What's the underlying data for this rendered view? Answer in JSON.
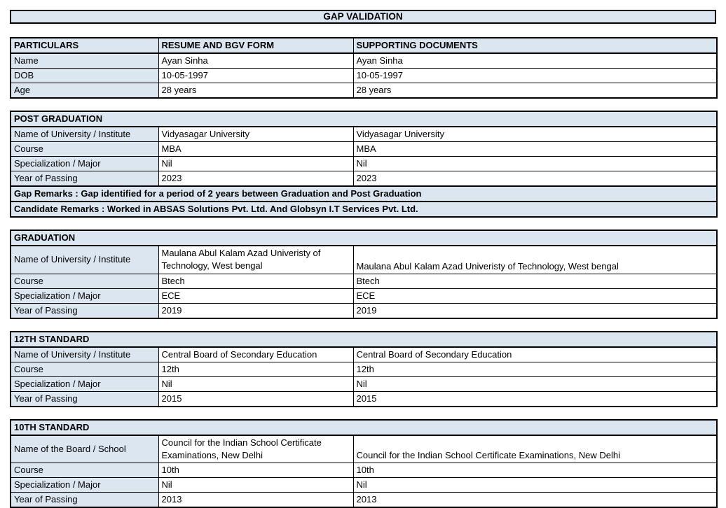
{
  "title": "GAP VALIDATION",
  "colors": {
    "accent_fill": "#DCE6F1",
    "border": "#000000",
    "text": "#000000",
    "background": "#FFFFFF"
  },
  "particulars_table": {
    "headers": [
      "PARTICULARS",
      "RESUME AND BGV FORM",
      "SUPPORTING DOCUMENTS"
    ],
    "rows": [
      {
        "label": "Name",
        "resume": "Ayan Sinha",
        "supporting": "Ayan Sinha"
      },
      {
        "label": "DOB",
        "resume": "10-05-1997",
        "supporting": "10-05-1997"
      },
      {
        "label": "Age",
        "resume": "28 years",
        "supporting": "28 years"
      }
    ]
  },
  "post_graduation": {
    "title": "POST GRADUATION",
    "rows": [
      {
        "label": "Name of University / Institute",
        "resume": "Vidyasagar University",
        "supporting": "Vidyasagar University"
      },
      {
        "label": "Course",
        "resume": "MBA",
        "supporting": "MBA"
      },
      {
        "label": "Specialization / Major",
        "resume": "Nil",
        "supporting": "Nil"
      },
      {
        "label": "Year of Passing",
        "resume": "2023",
        "supporting": "2023"
      }
    ],
    "gap_remarks": "Gap Remarks : Gap identified for a period of 2 years between Graduation and Post Graduation",
    "candidate_remarks": "Candidate Remarks : Worked in ABSAS Solutions Pvt. Ltd.  And Globsyn I.T Services Pvt. Ltd."
  },
  "graduation": {
    "title": "GRADUATION",
    "rows": [
      {
        "label": "Name of University / Institute",
        "resume": "Maulana Abul Kalam Azad Univeristy of Technology, West bengal",
        "supporting": "Maulana Abul Kalam Azad Univeristy of Technology, West bengal"
      },
      {
        "label": "Course",
        "resume": "Btech",
        "supporting": "Btech"
      },
      {
        "label": "Specialization / Major",
        "resume": "ECE",
        "supporting": "ECE"
      },
      {
        "label": "Year of Passing",
        "resume": "2019",
        "supporting": "2019"
      }
    ]
  },
  "twelfth_standard": {
    "title": "12TH STANDARD",
    "rows": [
      {
        "label": "Name of University / Institute",
        "resume": "Central Board of Secondary Education",
        "supporting": "Central Board of Secondary Education"
      },
      {
        "label": "Course",
        "resume": "12th",
        "supporting": "12th"
      },
      {
        "label": "Specialization / Major",
        "resume": "Nil",
        "supporting": "Nil"
      },
      {
        "label": "Year of Passing",
        "resume": "2015",
        "supporting": "2015"
      }
    ]
  },
  "tenth_standard": {
    "title": "10TH STANDARD",
    "rows": [
      {
        "label": "Name of the Board / School",
        "resume": "Council for the Indian School Certificate Examinations, New Delhi",
        "supporting": "Council for the Indian School Certificate Examinations, New Delhi"
      },
      {
        "label": "Course",
        "resume": "10th",
        "supporting": "10th"
      },
      {
        "label": "Specialization / Major",
        "resume": "Nil",
        "supporting": "Nil"
      },
      {
        "label": "Year of Passing",
        "resume": "2013",
        "supporting": "2013"
      }
    ]
  }
}
